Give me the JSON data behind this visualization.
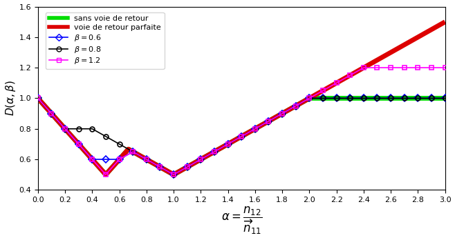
{
  "xlim": [
    0,
    3
  ],
  "ylim": [
    0.4,
    1.6
  ],
  "xticks": [
    0.0,
    0.2,
    0.4,
    0.6,
    0.8,
    1.0,
    1.2,
    1.4,
    1.6,
    1.8,
    2.0,
    2.2,
    2.4,
    2.6,
    2.8,
    3.0
  ],
  "yticks": [
    0.4,
    0.6,
    0.8,
    1.0,
    1.2,
    1.4,
    1.6
  ],
  "color_nofb": "#00dd00",
  "color_pfb": "#dd0000",
  "lw_cont": 5.0,
  "betas": [
    0.6,
    0.8,
    1.2
  ],
  "beta_colors": [
    "blue",
    "black",
    "magenta"
  ],
  "beta_markers": [
    "D",
    "o",
    "s"
  ],
  "beta_labels": [
    "$\\beta = 0.6$",
    "$\\beta = 0.8$",
    "$\\beta = 1.2$"
  ],
  "alpha_disc_step": 0.1,
  "marker_size": 5,
  "lw_beta": 1.2,
  "legend_nofb": "sans voie de retour",
  "legend_pfb": "voie de retour parfaite",
  "xlabel": "$\\alpha = \\dfrac{n_{12}}{\\overrightarrow{n}_{11}}$",
  "ylabel": "$D(\\alpha, \\beta)$",
  "figsize": [
    6.58,
    3.48
  ],
  "dpi": 100
}
